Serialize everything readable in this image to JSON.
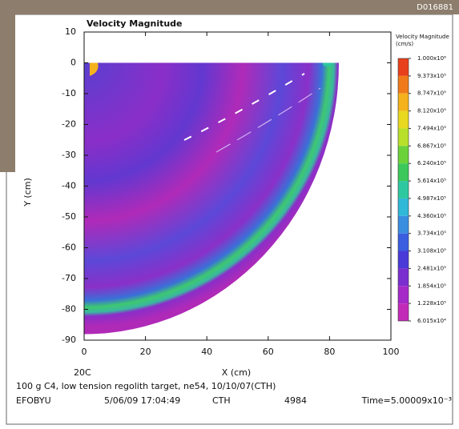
{
  "header": {
    "id": "D016881"
  },
  "chart_data": {
    "type": "contour",
    "title": "Velocity Magnitude",
    "x_label": "X (cm)",
    "y_label": "Y (cm)",
    "xlim": [
      0,
      100
    ],
    "ylim": [
      -90,
      10
    ],
    "xticks": [
      0,
      20,
      40,
      60,
      80,
      100
    ],
    "yticks": [
      10,
      0,
      -10,
      -20,
      -30,
      -40,
      -50,
      -60,
      -70,
      -80,
      -90
    ],
    "colorbar": {
      "title": [
        "Velocity Magnitude",
        "(cm/s)"
      ],
      "colors": [
        "#e8401c",
        "#f07a1a",
        "#f5b21c",
        "#e8d820",
        "#b8e02a",
        "#6cd23a",
        "#3cc85a",
        "#2ec8a0",
        "#30b8d8",
        "#3a8ee0",
        "#3a5ee0",
        "#4a3ad8",
        "#7a2ed0",
        "#a52ac8",
        "#c22ab8"
      ],
      "ticks": [
        {
          "value": 1000000,
          "label": "1.000x10⁶"
        },
        {
          "value": 937300,
          "label": "9.373x10⁵"
        },
        {
          "value": 874700,
          "label": "8.747x10⁵"
        },
        {
          "value": 812000,
          "label": "8.120x10⁵"
        },
        {
          "value": 749400,
          "label": "7.494x10⁵"
        },
        {
          "value": 686700,
          "label": "6.867x10⁵"
        },
        {
          "value": 624000,
          "label": "6.240x10⁵"
        },
        {
          "value": 561400,
          "label": "5.614x10⁵"
        },
        {
          "value": 498700,
          "label": "4.987x10⁵"
        },
        {
          "value": 436000,
          "label": "4.360x10⁵"
        },
        {
          "value": 373400,
          "label": "3.734x10⁵"
        },
        {
          "value": 310800,
          "label": "3.108x10⁵"
        },
        {
          "value": 248100,
          "label": "2.481x10⁵"
        },
        {
          "value": 185400,
          "label": "1.854x10⁵"
        },
        {
          "value": 122800,
          "label": "1.228x10⁵"
        },
        {
          "value": 60150,
          "label": "6.015x10⁴"
        }
      ]
    }
  },
  "footer": {
    "code": "20C",
    "line1": "100 g C4, low tension regolith target, ne54, 10/10/07(CTH)",
    "line2": [
      "EFOBYU",
      "5/06/09 17:04:49",
      "CTH",
      "4984",
      "Time=5.00009x10⁻³"
    ]
  }
}
